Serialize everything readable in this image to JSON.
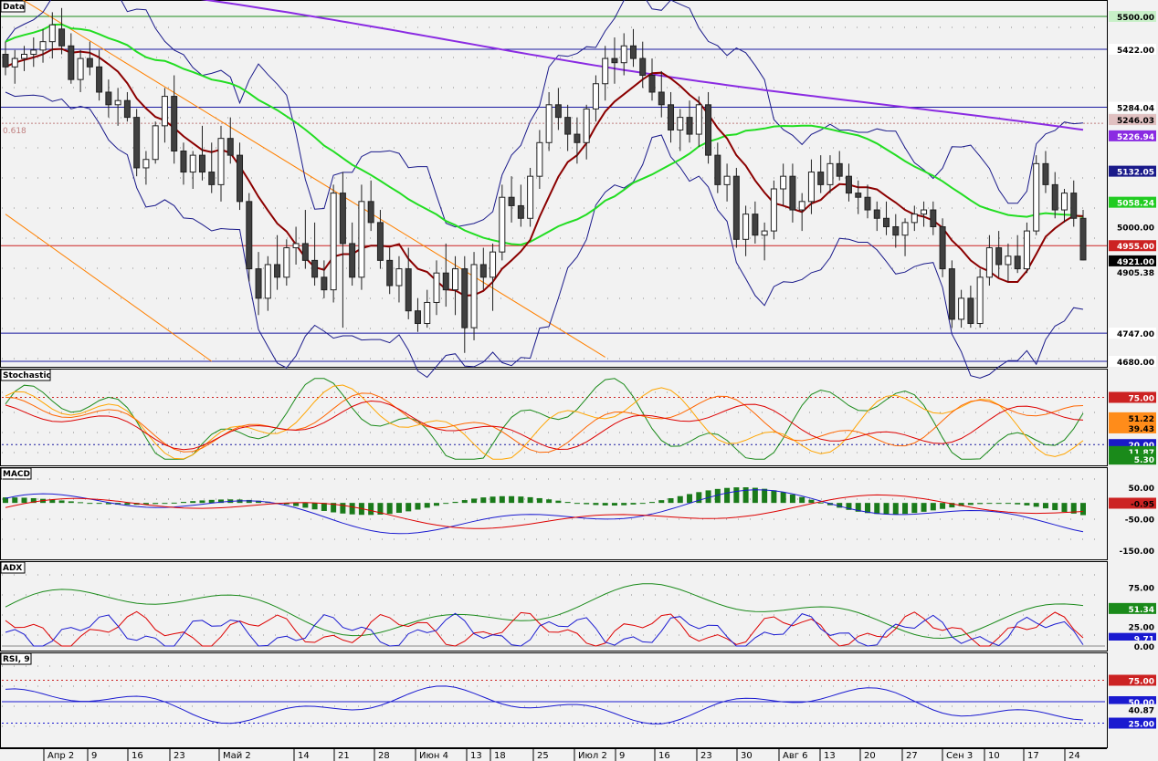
{
  "colors": {
    "background": "#f2f2f2",
    "grid": "#8a8a8a",
    "level_blue": "#1a1aa0",
    "level_red": "#cc2222",
    "level_green": "#1a8a1a",
    "ma_red": "#8b0000",
    "ma_green": "#22dd22",
    "ma_purple": "#8a2be2",
    "bollinger": "#1a1a8a",
    "trendline": "#ff8000",
    "candle_up": "#ffffff",
    "candle_down": "#404040"
  },
  "x_axis": {
    "labels": [
      "Апр 2",
      "9",
      "16",
      "23",
      "Май 2",
      "14",
      "21",
      "28",
      "Июн 4",
      "13",
      "18",
      "25",
      "Июл 2",
      "9",
      "16",
      "23",
      "30",
      "Авг 6",
      "13",
      "20",
      "27",
      "Сен 3",
      "10",
      "17",
      "24"
    ]
  },
  "chart_data": [
    {
      "type": "candlestick",
      "panel": "price",
      "title": "Data",
      "ylim": [
        4680,
        5500
      ],
      "yticks": [
        "5500.00",
        "5422.00",
        "5284.04",
        "5246.03",
        "5226.94",
        "5132.05",
        "5058.24",
        "5000.00",
        "4955.00",
        "4921.00",
        "4905.38",
        "4747.00",
        "4680.00"
      ],
      "level_lines": [
        {
          "value": 5500,
          "label": "5500.00",
          "color": "level_green"
        },
        {
          "value": 5422,
          "label": "5422.00",
          "color": "level_blue"
        },
        {
          "value": 5284.04,
          "label": "5284.04",
          "color": "level_blue"
        },
        {
          "value": 4955,
          "label": "4955.00",
          "color": "level_red"
        },
        {
          "value": 4747,
          "label": "4747.00",
          "color": "level_blue"
        },
        {
          "value": 4680,
          "label": "4680.00",
          "color": "level_blue"
        }
      ],
      "fib_label": "0.618",
      "fib_value": 5246.03,
      "price_labels": {
        "ma_purple": "5226.94",
        "boll_upper": "5132.05",
        "ma_green": "5058.24",
        "last": "4921.00",
        "boll_lower": "4905.38",
        "fib": "5246.03"
      },
      "trendlines": [
        {
          "from": [
            0,
            5565
          ],
          "to": [
            64,
            4690
          ]
        },
        {
          "from": [
            0,
            5030
          ],
          "to": [
            22,
            4680
          ]
        }
      ],
      "series_note": "OHLC values per bar",
      "ohlc": [
        [
          5410,
          5440,
          5360,
          5380
        ],
        [
          5380,
          5420,
          5340,
          5400
        ],
        [
          5400,
          5430,
          5370,
          5410
        ],
        [
          5410,
          5450,
          5380,
          5420
        ],
        [
          5420,
          5470,
          5390,
          5440
        ],
        [
          5440,
          5510,
          5400,
          5480
        ],
        [
          5470,
          5520,
          5410,
          5430
        ],
        [
          5430,
          5460,
          5340,
          5350
        ],
        [
          5350,
          5420,
          5320,
          5400
        ],
        [
          5400,
          5440,
          5360,
          5380
        ],
        [
          5380,
          5420,
          5300,
          5320
        ],
        [
          5320,
          5350,
          5260,
          5290
        ],
        [
          5290,
          5330,
          5240,
          5300
        ],
        [
          5300,
          5320,
          5250,
          5260
        ],
        [
          5260,
          5280,
          5120,
          5140
        ],
        [
          5140,
          5180,
          5100,
          5160
        ],
        [
          5160,
          5250,
          5150,
          5240
        ],
        [
          5240,
          5330,
          5200,
          5310
        ],
        [
          5310,
          5360,
          5150,
          5180
        ],
        [
          5180,
          5200,
          5100,
          5130
        ],
        [
          5130,
          5180,
          5090,
          5170
        ],
        [
          5170,
          5240,
          5110,
          5130
        ],
        [
          5130,
          5200,
          5080,
          5100
        ],
        [
          5100,
          5240,
          5060,
          5210
        ],
        [
          5210,
          5260,
          5150,
          5170
        ],
        [
          5170,
          5200,
          5040,
          5060
        ],
        [
          5060,
          5080,
          4870,
          4900
        ],
        [
          4900,
          4940,
          4790,
          4830
        ],
        [
          4830,
          4930,
          4800,
          4910
        ],
        [
          4910,
          4980,
          4850,
          4880
        ],
        [
          4880,
          4970,
          4860,
          4950
        ],
        [
          4950,
          5000,
          4910,
          4960
        ],
        [
          4960,
          5040,
          4900,
          4920
        ],
        [
          4920,
          5010,
          4860,
          4880
        ],
        [
          4880,
          4920,
          4830,
          4850
        ],
        [
          4850,
          5100,
          4820,
          5080
        ],
        [
          5080,
          5130,
          4760,
          4960
        ],
        [
          4960,
          5010,
          4860,
          4880
        ],
        [
          4880,
          5100,
          4850,
          5060
        ],
        [
          5060,
          5110,
          4990,
          5010
        ],
        [
          5010,
          5040,
          4900,
          4920
        ],
        [
          4920,
          4950,
          4840,
          4860
        ],
        [
          4860,
          4930,
          4820,
          4900
        ],
        [
          4900,
          4950,
          4780,
          4800
        ],
        [
          4800,
          4830,
          4750,
          4770
        ],
        [
          4770,
          4850,
          4760,
          4820
        ],
        [
          4820,
          4920,
          4790,
          4890
        ],
        [
          4890,
          4960,
          4810,
          4850
        ],
        [
          4850,
          4930,
          4790,
          4900
        ],
        [
          4900,
          4930,
          4700,
          4760
        ],
        [
          4760,
          4940,
          4730,
          4910
        ],
        [
          4910,
          4950,
          4850,
          4880
        ],
        [
          4880,
          4960,
          4800,
          4940
        ],
        [
          4940,
          5100,
          4920,
          5070
        ],
        [
          5070,
          5120,
          5010,
          5050
        ],
        [
          5050,
          5100,
          5000,
          5020
        ],
        [
          5020,
          5140,
          5000,
          5120
        ],
        [
          5120,
          5230,
          5090,
          5200
        ],
        [
          5200,
          5320,
          5180,
          5290
        ],
        [
          5290,
          5330,
          5230,
          5260
        ],
        [
          5260,
          5290,
          5180,
          5220
        ],
        [
          5220,
          5260,
          5150,
          5200
        ],
        [
          5200,
          5290,
          5160,
          5280
        ],
        [
          5280,
          5360,
          5250,
          5340
        ],
        [
          5340,
          5430,
          5300,
          5400
        ],
        [
          5400,
          5450,
          5340,
          5390
        ],
        [
          5390,
          5460,
          5360,
          5430
        ],
        [
          5430,
          5470,
          5380,
          5400
        ],
        [
          5400,
          5440,
          5330,
          5360
        ],
        [
          5360,
          5400,
          5300,
          5320
        ],
        [
          5320,
          5370,
          5260,
          5290
        ],
        [
          5290,
          5320,
          5200,
          5230
        ],
        [
          5230,
          5280,
          5180,
          5260
        ],
        [
          5260,
          5300,
          5200,
          5220
        ],
        [
          5220,
          5310,
          5190,
          5290
        ],
        [
          5290,
          5320,
          5150,
          5170
        ],
        [
          5170,
          5200,
          5080,
          5100
        ],
        [
          5100,
          5150,
          5060,
          5120
        ],
        [
          5120,
          5140,
          4950,
          4970
        ],
        [
          4970,
          5050,
          4930,
          5030
        ],
        [
          5030,
          5060,
          4960,
          4980
        ],
        [
          4980,
          5010,
          4920,
          4990
        ],
        [
          4990,
          5110,
          4970,
          5090
        ],
        [
          5090,
          5150,
          5050,
          5120
        ],
        [
          5120,
          5150,
          5010,
          5040
        ],
        [
          5040,
          5080,
          4990,
          5060
        ],
        [
          5060,
          5160,
          5030,
          5130
        ],
        [
          5130,
          5170,
          5080,
          5100
        ],
        [
          5100,
          5170,
          5080,
          5150
        ],
        [
          5150,
          5180,
          5110,
          5120
        ],
        [
          5120,
          5150,
          5060,
          5080
        ],
        [
          5080,
          5110,
          5030,
          5070
        ],
        [
          5070,
          5100,
          5020,
          5040
        ],
        [
          5040,
          5060,
          4990,
          5020
        ],
        [
          5020,
          5060,
          4980,
          5000
        ],
        [
          5000,
          5030,
          4950,
          4980
        ],
        [
          4980,
          5020,
          4930,
          5010
        ],
        [
          5010,
          5050,
          4990,
          5030
        ],
        [
          5030,
          5060,
          5000,
          5040
        ],
        [
          5040,
          5060,
          4980,
          5000
        ],
        [
          5000,
          5020,
          4880,
          4900
        ],
        [
          4900,
          4920,
          4760,
          4780
        ],
        [
          4780,
          4850,
          4760,
          4830
        ],
        [
          4830,
          4860,
          4760,
          4770
        ],
        [
          4770,
          4900,
          4760,
          4880
        ],
        [
          4880,
          4980,
          4860,
          4950
        ],
        [
          4950,
          4990,
          4880,
          4910
        ],
        [
          4910,
          4960,
          4870,
          4930
        ],
        [
          4930,
          4980,
          4890,
          4900
        ],
        [
          4900,
          5010,
          4890,
          4990
        ],
        [
          4990,
          5170,
          4980,
          5150
        ],
        [
          5150,
          5180,
          5080,
          5100
        ],
        [
          5100,
          5130,
          5020,
          5040
        ],
        [
          5040,
          5090,
          5010,
          5080
        ],
        [
          5080,
          5110,
          5000,
          5020
        ],
        [
          5020,
          5040,
          4920,
          4921
        ]
      ]
    },
    {
      "type": "line",
      "panel": "stochastic",
      "title": "Stochastic",
      "ylim": [
        0,
        100
      ],
      "yticks": [
        "75.00",
        "51.22",
        "39.43",
        "20.00",
        "11.87",
        "5.30"
      ],
      "levels": [
        75,
        20
      ]
    },
    {
      "type": "bar",
      "panel": "macd",
      "title": "MACD",
      "ylim": [
        -170,
        90
      ],
      "yticks": [
        "50.00",
        "-0.95",
        "-50.00",
        "-150.00"
      ]
    },
    {
      "type": "line",
      "panel": "adx",
      "title": "ADX",
      "ylim": [
        0,
        100
      ],
      "yticks": [
        "75.00",
        "51.34",
        "25.00",
        "9.71",
        "0.00"
      ]
    },
    {
      "type": "line",
      "panel": "rsi",
      "title": "RSI, 9",
      "ylim": [
        0,
        100
      ],
      "yticks": [
        "75.00",
        "50.00",
        "40.87",
        "25.00"
      ],
      "levels": [
        75,
        50,
        25
      ]
    }
  ]
}
